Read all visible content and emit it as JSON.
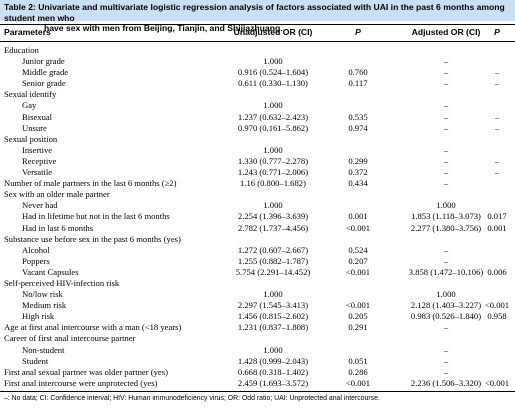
{
  "caption": {
    "line1": "Table 2: Univariate and multivariate logistic regression analysis of factors associated with UAI in the past 6 months among student men who",
    "line2": "have sex with men from Beijing, Tianjin, and Shijiazhuang."
  },
  "header": {
    "parameters": "Parameters",
    "unadjusted": "Unadjusted OR (CI)",
    "p1": "P",
    "adjusted": "Adjusted OR (CI)",
    "p2": "P"
  },
  "rows": [
    {
      "label": "Education",
      "uor": "",
      "up": "",
      "aor": "",
      "ap": "",
      "sub": false
    },
    {
      "label": "Junior grade",
      "uor": "1.000",
      "up": "",
      "aor": "–",
      "ap": "",
      "sub": true
    },
    {
      "label": "Middle grade",
      "uor": "0.916 (0.524–1.604)",
      "up": "0.760",
      "aor": "–",
      "ap": "–",
      "sub": true
    },
    {
      "label": "Senior grade",
      "uor": "0.611 (0.330–1.130)",
      "up": "0.117",
      "aor": "–",
      "ap": "–",
      "sub": true
    },
    {
      "label": "Sexual identify",
      "uor": "",
      "up": "",
      "aor": "",
      "ap": "",
      "sub": false
    },
    {
      "label": "Gay",
      "uor": "1.000",
      "up": "",
      "aor": "–",
      "ap": "",
      "sub": true
    },
    {
      "label": "Bisexual",
      "uor": "1.237 (0.632–2.423)",
      "up": "0.535",
      "aor": "–",
      "ap": "–",
      "sub": true
    },
    {
      "label": "Unsure",
      "uor": "0.970 (0.161–5.862)",
      "up": "0.974",
      "aor": "–",
      "ap": "–",
      "sub": true
    },
    {
      "label": "Sexual position",
      "uor": "",
      "up": "",
      "aor": "",
      "ap": "",
      "sub": false
    },
    {
      "label": "Insertive",
      "uor": "1.000",
      "up": "",
      "aor": "–",
      "ap": "",
      "sub": true
    },
    {
      "label": "Receptive",
      "uor": "1.330 (0.777–2.278)",
      "up": "0.299",
      "aor": "–",
      "ap": "–",
      "sub": true
    },
    {
      "label": "Versatile",
      "uor": "1.243 (0.771–2.006)",
      "up": "0.372",
      "aor": "–",
      "ap": "–",
      "sub": true
    },
    {
      "label": "Number of male partners in the last 6 months (≥2)",
      "uor": "1.16 (0.800–1.682)",
      "up": "0.434",
      "aor": "–",
      "ap": "",
      "sub": false
    },
    {
      "label": "Sex with an older male partner",
      "uor": "",
      "up": "",
      "aor": "",
      "ap": "",
      "sub": false
    },
    {
      "label": "Never had",
      "uor": "1.000",
      "up": "",
      "aor": "1.000",
      "ap": "",
      "sub": true
    },
    {
      "label": "Had in lifetime but not in the last 6 months",
      "uor": "2.254 (1.396–3.639)",
      "up": "0.001",
      "aor": "1.853 (1.118–3.073)",
      "ap": "0.017",
      "sub": true
    },
    {
      "label": "Had in last 6 months",
      "uor": "2.782 (1.737–4.456)",
      "up": "<0.001",
      "aor": "2.277 (1.380–3.756)",
      "ap": "0.001",
      "sub": true
    },
    {
      "label": "Substance use before sex in the past 6 months (yes)",
      "uor": "",
      "up": "",
      "aor": "",
      "ap": "",
      "sub": false
    },
    {
      "label": "Alcohol",
      "uor": "1.272 (0.607–2.667)",
      "up": "0.524",
      "aor": "–",
      "ap": "",
      "sub": true
    },
    {
      "label": "Poppers",
      "uor": "1.255 (0.882–1.787)",
      "up": "0.207",
      "aor": "–",
      "ap": "",
      "sub": true
    },
    {
      "label": "Vacant Capsules",
      "uor": "5.754 (2.291–14.452)",
      "up": "<0.001",
      "aor": "3.858 (1.472–10.106)",
      "ap": "0.006",
      "sub": true
    },
    {
      "label": "Self-perceived HIV-infection risk",
      "uor": "",
      "up": "",
      "aor": "",
      "ap": "",
      "sub": false
    },
    {
      "label": "No/low risk",
      "uor": "1.000",
      "up": "",
      "aor": "1.000",
      "ap": "",
      "sub": true
    },
    {
      "label": "Medium risk",
      "uor": "2.297 (1.545–3.413)",
      "up": "<0.001",
      "aor": "2.128 (1.403–3.227)",
      "ap": "<0.001",
      "sub": true
    },
    {
      "label": "High risk",
      "uor": "1.456 (0.815–2.602)",
      "up": "0.205",
      "aor": "0.983 (0.526–1.840)",
      "ap": "0.958",
      "sub": true
    },
    {
      "label": "Age at first anal intercourse with a man (<18 years)",
      "uor": "1.231 (0.837–1.808)",
      "up": "0.291",
      "aor": "–",
      "ap": "",
      "sub": false
    },
    {
      "label": "Career of first anal intercourse partner",
      "uor": "",
      "up": "",
      "aor": "",
      "ap": "",
      "sub": false
    },
    {
      "label": "Non-student",
      "uor": "1.000",
      "up": "",
      "aor": "–",
      "ap": "",
      "sub": true
    },
    {
      "label": "Student",
      "uor": "1.428 (0.999–2.043)",
      "up": "0.051",
      "aor": "–",
      "ap": "",
      "sub": true
    },
    {
      "label": "First anal sexual partner was older partner (yes)",
      "uor": "0.668 (0.318–1.402)",
      "up": "0.286",
      "aor": "–",
      "ap": "",
      "sub": false
    },
    {
      "label": "First anal intercourse were unprotected (yes)",
      "uor": "2.459 (1.693–3.572)",
      "up": "<0.001",
      "aor": "2.236 (1.506–3.320)",
      "ap": "<0.001",
      "sub": false
    }
  ],
  "footnote": "–: No data; CI: Confidence interval; HIV: Human immunodeficiency virus; OR: Odd ratio; UAI: Unprotected anal intercourse."
}
